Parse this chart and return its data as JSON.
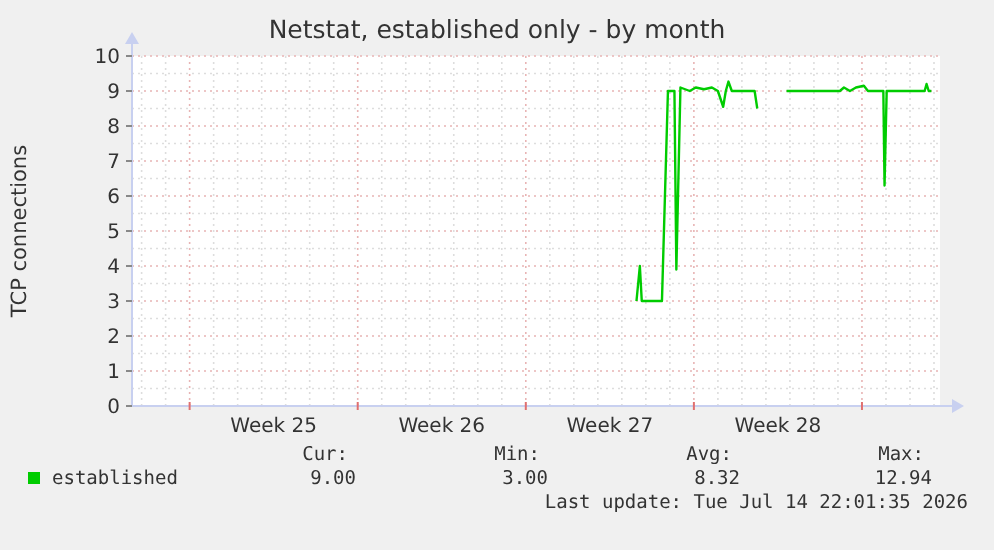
{
  "chart_data": {
    "type": "line",
    "title": "Netstat, established only - by month",
    "ylabel": "TCP connections",
    "xlim": [
      "2026-06-12T14:24",
      "2026-07-16T06:00"
    ],
    "xticks": [
      {
        "value": "2026-06-13",
        "label": null
      },
      {
        "value": "2026-06-14",
        "label": null
      },
      {
        "value": "2026-06-15",
        "label": null
      },
      {
        "value": "2026-06-16",
        "label": null
      },
      {
        "value": "2026-06-17",
        "label": null
      },
      {
        "value": "2026-06-18",
        "label": null
      },
      {
        "value": "2026-06-18T12:00",
        "label": "Week 25"
      },
      {
        "value": "2026-06-19",
        "label": null
      },
      {
        "value": "2026-06-20",
        "label": null
      },
      {
        "value": "2026-06-21",
        "label": null
      },
      {
        "value": "2026-06-22",
        "label": null
      },
      {
        "value": "2026-06-23",
        "label": null
      },
      {
        "value": "2026-06-24",
        "label": null
      },
      {
        "value": "2026-06-25",
        "label": null
      },
      {
        "value": "2026-06-25T12:00",
        "label": "Week 26"
      },
      {
        "value": "2026-06-26",
        "label": null
      },
      {
        "value": "2026-06-27",
        "label": null
      },
      {
        "value": "2026-06-28",
        "label": null
      },
      {
        "value": "2026-06-29",
        "label": null
      },
      {
        "value": "2026-06-30",
        "label": null
      },
      {
        "value": "2026-07-01",
        "label": null
      },
      {
        "value": "2026-07-02",
        "label": null
      },
      {
        "value": "2026-07-02T12:00",
        "label": "Week 27"
      },
      {
        "value": "2026-07-03",
        "label": null
      },
      {
        "value": "2026-07-04",
        "label": null
      },
      {
        "value": "2026-07-05",
        "label": null
      },
      {
        "value": "2026-07-06",
        "label": null
      },
      {
        "value": "2026-07-07",
        "label": null
      },
      {
        "value": "2026-07-08",
        "label": null
      },
      {
        "value": "2026-07-09",
        "label": null
      },
      {
        "value": "2026-07-09T12:00",
        "label": "Week 28"
      },
      {
        "value": "2026-07-10",
        "label": null
      },
      {
        "value": "2026-07-11",
        "label": null
      },
      {
        "value": "2026-07-12",
        "label": null
      },
      {
        "value": "2026-07-13",
        "label": null
      },
      {
        "value": "2026-07-14",
        "label": null
      },
      {
        "value": "2026-07-15",
        "label": null
      },
      {
        "value": "2026-07-16",
        "label": null
      }
    ],
    "ylim": [
      0,
      10
    ],
    "yticks": [
      0,
      {
        "value": 0.5,
        "label": null
      },
      1,
      {
        "value": 1.5,
        "label": null
      },
      2,
      {
        "value": 2.5,
        "label": null
      },
      3,
      {
        "value": 3.5,
        "label": null
      },
      4,
      {
        "value": 4.5,
        "label": null
      },
      5,
      {
        "value": 5.5,
        "label": null
      },
      6,
      {
        "value": 6.5,
        "label": null
      },
      7,
      {
        "value": 7.5,
        "label": null
      },
      8,
      {
        "value": 8.5,
        "label": null
      },
      9,
      {
        "value": 9.5,
        "label": null
      },
      10
    ],
    "grid": true,
    "legend": "bottom left",
    "series": [
      {
        "name": "established",
        "color": "#00cc00",
        "x": [
          "2026-07-03T14:38",
          "2026-07-03T18:00",
          "2026-07-03T19:55",
          "2026-07-03T22:05",
          "2026-07-04T16:05",
          "2026-07-04T22:05",
          "2026-07-05T04:34",
          "2026-07-05T06:29",
          "2026-07-05T10:34",
          "2026-07-05T19:55",
          "2026-07-06T01:55",
          "2026-07-06T10:05",
          "2026-07-06T18:00",
          "2026-07-07T00:00",
          "2026-07-07T05:17",
          "2026-07-07T07:55",
          "2026-07-07T10:34",
          "2026-07-07T13:55",
          "2026-07-08T12:43",
          "2026-07-08T15:22",
          "2026-07-09T04:48",
          "2026-07-09T20:38",
          "2026-07-12T01:55",
          "2026-07-12T06:00",
          "2026-07-12T12:00",
          "2026-07-12T18:00",
          "2026-07-13T01:55",
          "2026-07-13T06:00",
          "2026-07-13T21:22",
          "2026-07-13T22:34",
          "2026-07-14T00:43",
          "2026-07-15T14:38",
          "2026-07-15T16:34",
          "2026-07-15T18:43",
          "2026-07-15T21:22"
        ],
        "values": [
          3.0,
          4.0,
          3.0,
          3.0,
          3.0,
          9.0,
          9.0,
          3.9,
          9.1,
          9.0,
          9.1,
          9.05,
          9.1,
          9.0,
          8.55,
          9.0,
          9.27,
          9.0,
          9.0,
          8.5,
          null,
          9.0,
          9.0,
          9.1,
          9.0,
          9.1,
          9.15,
          9.0,
          9.0,
          6.3,
          9.0,
          9.0,
          9.2,
          9.0,
          9.0
        ]
      }
    ],
    "annotations": [
      "Cur:",
      "Min:",
      "Avg:",
      "Max:",
      "9.00",
      "3.00",
      "8.32",
      "12.94",
      "Last update: Tue Jul 14 22:01:35 2026"
    ]
  }
}
